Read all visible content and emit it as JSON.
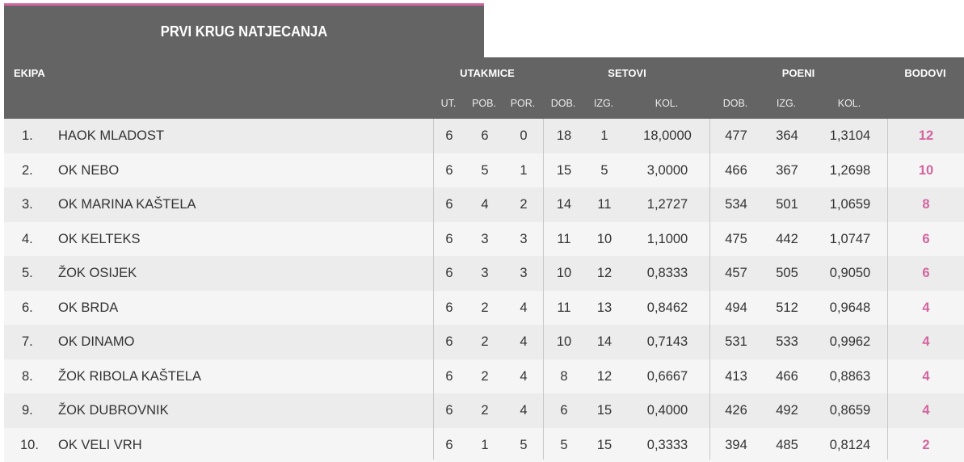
{
  "title": "PRVI KRUG NATJECANJA",
  "header": {
    "ekipa": "EKIPA",
    "groups": {
      "utakmice": "UTAKMICE",
      "setovi": "SETOVI",
      "poeni": "POENI",
      "bodovi": "BODOVI"
    },
    "sub": {
      "ut": "UT.",
      "pob": "POB.",
      "por": "POR.",
      "set_dob": "DOB.",
      "set_izg": "IZG.",
      "set_kol": "KOL.",
      "poeni_dob": "DOB.",
      "poeni_izg": "IZG.",
      "poeni_kol": "KOL."
    }
  },
  "colors": {
    "header_bg": "#646464",
    "accent": "#d4649f"
  },
  "rows": [
    {
      "rank": "1.",
      "team": "HAOK MLADOST",
      "ut": "6",
      "pob": "6",
      "por": "0",
      "set_dob": "18",
      "set_izg": "1",
      "set_kol": "18,0000",
      "poeni_dob": "477",
      "poeni_izg": "364",
      "poeni_kol": "1,3104",
      "bodovi": "12"
    },
    {
      "rank": "2.",
      "team": "OK NEBO",
      "ut": "6",
      "pob": "5",
      "por": "1",
      "set_dob": "15",
      "set_izg": "5",
      "set_kol": "3,0000",
      "poeni_dob": "466",
      "poeni_izg": "367",
      "poeni_kol": "1,2698",
      "bodovi": "10"
    },
    {
      "rank": "3.",
      "team": "OK MARINA KAŠTELA",
      "ut": "6",
      "pob": "4",
      "por": "2",
      "set_dob": "14",
      "set_izg": "11",
      "set_kol": "1,2727",
      "poeni_dob": "534",
      "poeni_izg": "501",
      "poeni_kol": "1,0659",
      "bodovi": "8"
    },
    {
      "rank": "4.",
      "team": "OK KELTEKS",
      "ut": "6",
      "pob": "3",
      "por": "3",
      "set_dob": "11",
      "set_izg": "10",
      "set_kol": "1,1000",
      "poeni_dob": "475",
      "poeni_izg": "442",
      "poeni_kol": "1,0747",
      "bodovi": "6"
    },
    {
      "rank": "5.",
      "team": "ŽOK OSIJEK",
      "ut": "6",
      "pob": "3",
      "por": "3",
      "set_dob": "10",
      "set_izg": "12",
      "set_kol": "0,8333",
      "poeni_dob": "457",
      "poeni_izg": "505",
      "poeni_kol": "0,9050",
      "bodovi": "6"
    },
    {
      "rank": "6.",
      "team": "OK BRDA",
      "ut": "6",
      "pob": "2",
      "por": "4",
      "set_dob": "11",
      "set_izg": "13",
      "set_kol": "0,8462",
      "poeni_dob": "494",
      "poeni_izg": "512",
      "poeni_kol": "0,9648",
      "bodovi": "4"
    },
    {
      "rank": "7.",
      "team": "OK DINAMO",
      "ut": "6",
      "pob": "2",
      "por": "4",
      "set_dob": "10",
      "set_izg": "14",
      "set_kol": "0,7143",
      "poeni_dob": "531",
      "poeni_izg": "533",
      "poeni_kol": "0,9962",
      "bodovi": "4"
    },
    {
      "rank": "8.",
      "team": "ŽOK RIBOLA KAŠTELA",
      "ut": "6",
      "pob": "2",
      "por": "4",
      "set_dob": "8",
      "set_izg": "12",
      "set_kol": "0,6667",
      "poeni_dob": "413",
      "poeni_izg": "466",
      "poeni_kol": "0,8863",
      "bodovi": "4"
    },
    {
      "rank": "9.",
      "team": "ŽOK DUBROVNIK",
      "ut": "6",
      "pob": "2",
      "por": "4",
      "set_dob": "6",
      "set_izg": "15",
      "set_kol": "0,4000",
      "poeni_dob": "426",
      "poeni_izg": "492",
      "poeni_kol": "0,8659",
      "bodovi": "4"
    },
    {
      "rank": "10.",
      "team": "OK VELI VRH",
      "ut": "6",
      "pob": "1",
      "por": "5",
      "set_dob": "5",
      "set_izg": "15",
      "set_kol": "0,3333",
      "poeni_dob": "394",
      "poeni_izg": "485",
      "poeni_kol": "0,8124",
      "bodovi": "2"
    }
  ]
}
